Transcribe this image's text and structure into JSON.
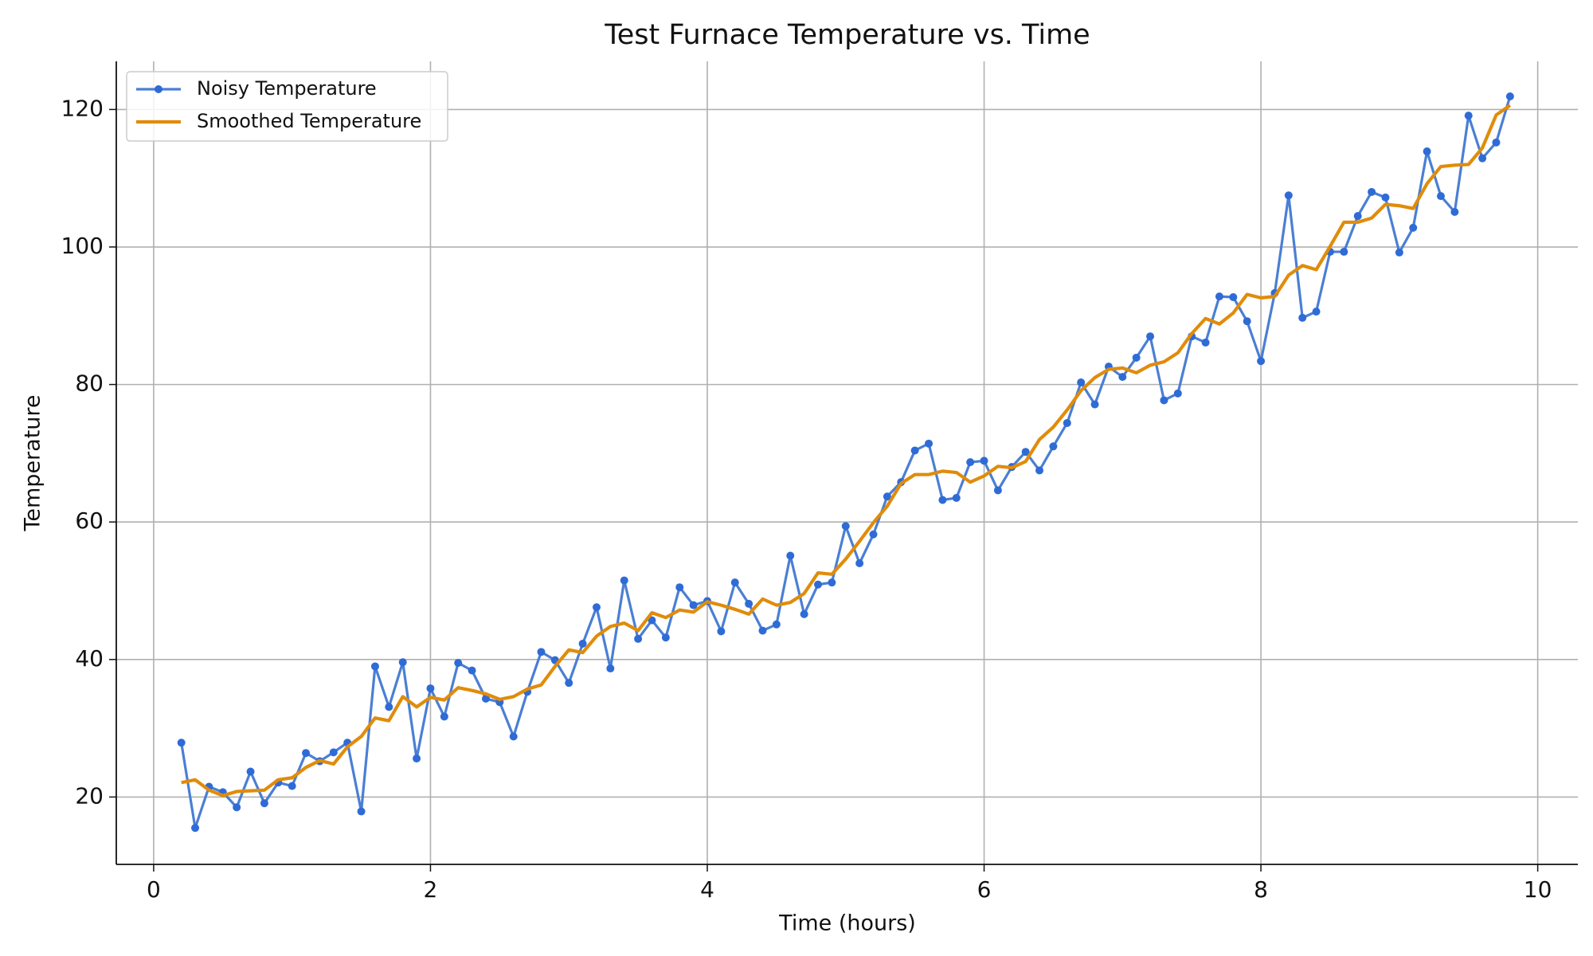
{
  "chart_data": {
    "type": "line",
    "title": "Test Furnace Temperature vs. Time",
    "x_label": "Time (hours)",
    "y_label": "Temperature",
    "x": [
      0.2,
      0.3,
      0.4,
      0.5,
      0.6,
      0.7,
      0.8,
      0.9,
      1.0,
      1.1,
      1.2,
      1.3,
      1.4,
      1.5,
      1.6,
      1.7,
      1.8,
      1.9,
      2.0,
      2.1,
      2.2,
      2.3,
      2.4,
      2.5,
      2.6,
      2.7,
      2.8,
      2.9,
      3.0,
      3.1,
      3.2,
      3.3,
      3.4,
      3.5,
      3.6,
      3.7,
      3.8,
      3.9,
      4.0,
      4.1,
      4.2,
      4.3,
      4.4,
      4.5,
      4.6,
      4.7,
      4.8,
      4.9,
      5.0,
      5.1,
      5.2,
      5.3,
      5.4,
      5.5,
      5.6,
      5.7,
      5.8,
      5.9,
      6.0,
      6.1,
      6.2,
      6.3,
      6.4,
      6.5,
      6.6,
      6.7,
      6.8,
      6.9,
      7.0,
      7.1,
      7.2,
      7.3,
      7.4,
      7.5,
      7.6,
      7.7,
      7.8,
      7.9,
      8.0,
      8.1,
      8.2,
      8.3,
      8.4,
      8.5,
      8.6,
      8.7,
      8.8,
      8.9,
      9.0,
      9.1,
      9.2,
      9.3,
      9.4,
      9.5,
      9.6,
      9.7,
      9.8
    ],
    "series": [
      {
        "name": "Noisy Temperature",
        "color": "#4a7fd4",
        "marker": true,
        "values": [
          27.9,
          15.5,
          21.5,
          20.7,
          18.5,
          23.7,
          19.1,
          22.1,
          21.6,
          26.4,
          25.2,
          26.5,
          27.9,
          17.9,
          39.0,
          33.1,
          39.6,
          25.6,
          35.8,
          31.7,
          39.5,
          38.4,
          34.3,
          33.8,
          28.8,
          35.3,
          41.1,
          39.9,
          36.6,
          42.3,
          47.6,
          38.7,
          51.5,
          43.0,
          45.7,
          43.2,
          50.5,
          47.9,
          48.5,
          44.1,
          51.2,
          48.1,
          44.2,
          45.1,
          55.1,
          46.6,
          50.9,
          51.2,
          59.4,
          54.0,
          58.2,
          63.7,
          65.8,
          70.4,
          71.4,
          63.2,
          63.5,
          68.7,
          68.9,
          64.6,
          68.0,
          70.2,
          67.5,
          71.0,
          74.4,
          80.3,
          77.1,
          82.6,
          81.1,
          83.9,
          87.0,
          77.7,
          78.7,
          87.0,
          86.1,
          92.8,
          92.7,
          89.2,
          83.4,
          93.3,
          107.5,
          89.7,
          90.6,
          99.3,
          99.3,
          104.5,
          108.0,
          107.2,
          99.2,
          102.8,
          113.9,
          107.4,
          105.1,
          119.1,
          112.9,
          115.2,
          121.9
        ]
      },
      {
        "name": "Smoothed Temperature",
        "color": "#e08c0b",
        "marker": false,
        "values": [
          22.1,
          22.5,
          21,
          20.2,
          20.8,
          20.9,
          21,
          22.5,
          22.8,
          24.3,
          25.3,
          24.8,
          27.3,
          28.8,
          31.5,
          31.1,
          34.6,
          33.1,
          34.5,
          34.1,
          35.9,
          35.5,
          35.0,
          34.2,
          34.6,
          35.7,
          36.3,
          39.0,
          41.4,
          41.0,
          43.4,
          44.8,
          45.3,
          44.2,
          46.8,
          46.1,
          47.2,
          46.9,
          48.4,
          47.9,
          47.3,
          46.6,
          48.8,
          47.9,
          48.3,
          49.6,
          52.6,
          52.4,
          54.6,
          57.2,
          59.9,
          62.3,
          65.6,
          66.9,
          66.9,
          67.4,
          67.2,
          65.8,
          66.7,
          68.1,
          67.9,
          68.8,
          72.0,
          73.8,
          76.3,
          79.1,
          81.0,
          82.2,
          82.4,
          81.7,
          82.8,
          83.3,
          84.6,
          87.4,
          89.6,
          88.8,
          90.4,
          93.1,
          92.6,
          92.8,
          95.9,
          97.3,
          96.7,
          100.1,
          103.6,
          103.6,
          104.2,
          106.2,
          106.0,
          105.6,
          109.2,
          111.7,
          111.9,
          112.0,
          114.4,
          119.2,
          120.6
        ]
      }
    ],
    "xlim": [
      -0.27,
      10.29
    ],
    "xticks": [
      0,
      2,
      4,
      6,
      8,
      10
    ],
    "ylim": [
      10.2,
      127.0
    ],
    "yticks": [
      20,
      40,
      60,
      80,
      100,
      120
    ],
    "grid": true,
    "legend": "upper left"
  }
}
